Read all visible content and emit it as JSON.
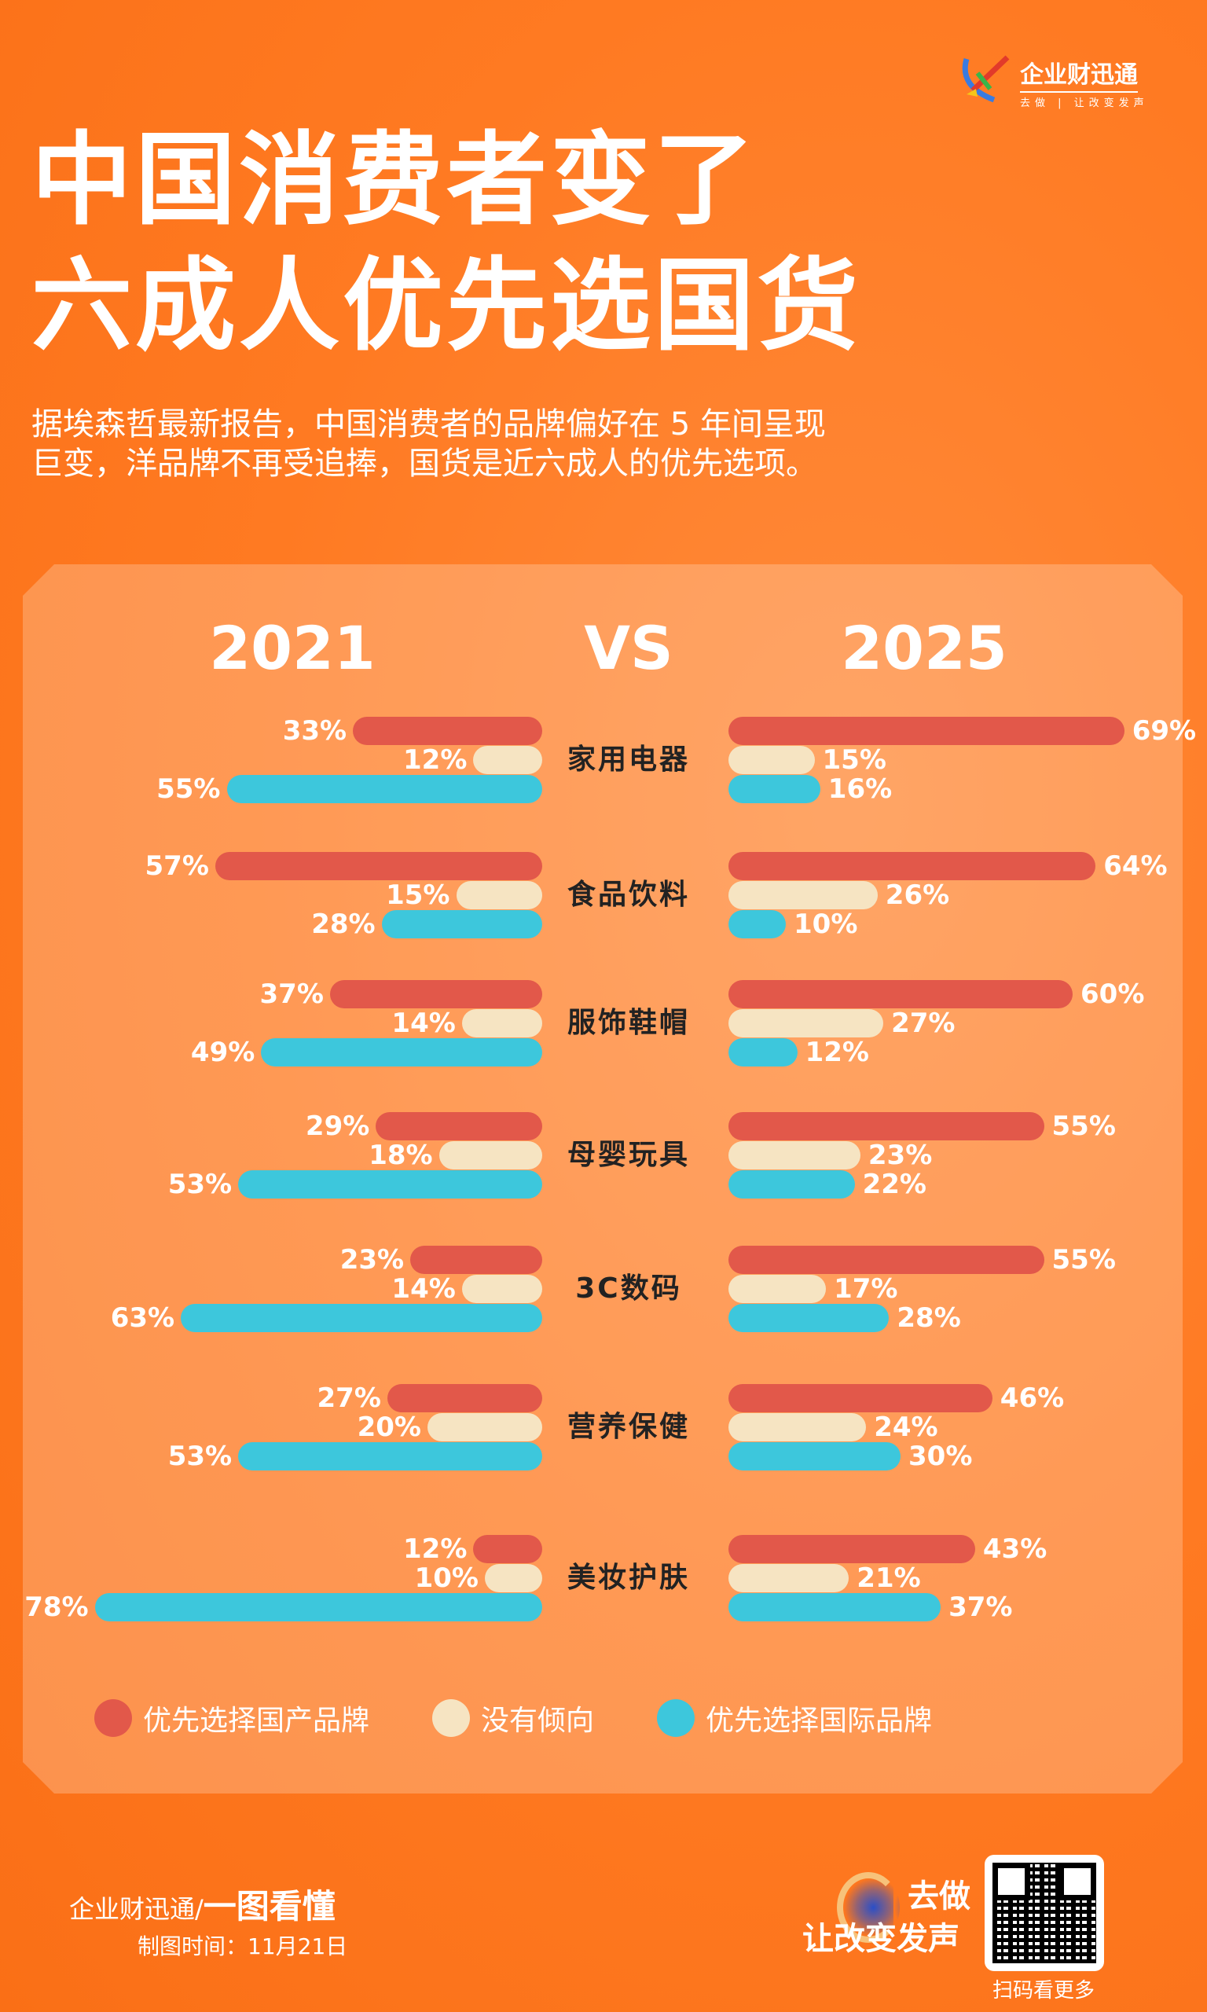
{
  "brand": {
    "name": "企业财迅通",
    "slogan": "去做 | 让改变发声"
  },
  "title": [
    "中国消费者变了",
    "六成人优先选国货"
  ],
  "subtitle": "据埃森哲最新报告，中国消费者的品牌偏好在 5 年间呈现巨变，洋品牌不再受追捧，国货是近六成人的优先选项。",
  "colors": {
    "domestic": "#e2584a",
    "neutral": "#f6e4c2",
    "international": "#3dc7dc",
    "background": "#ff7a22"
  },
  "chart_data": {
    "type": "bar",
    "title": "2021 VS 2025",
    "left_header": "2021",
    "vs": "VS",
    "right_header": "2025",
    "categories": [
      "家用电器",
      "食品饮料",
      "服饰鞋帽",
      "母婴玩具",
      "3C数码",
      "营养保健",
      "美妆护肤"
    ],
    "series": [
      {
        "name": "优先选择国产品牌",
        "y2021": [
          33,
          57,
          37,
          29,
          23,
          27,
          12
        ],
        "y2025": [
          69,
          64,
          60,
          55,
          55,
          46,
          43
        ]
      },
      {
        "name": "没有倾向",
        "y2021": [
          12,
          15,
          14,
          18,
          14,
          20,
          10
        ],
        "y2025": [
          15,
          26,
          27,
          23,
          17,
          24,
          21
        ]
      },
      {
        "name": "优先选择国际品牌",
        "y2021": [
          55,
          28,
          49,
          53,
          63,
          53,
          78
        ],
        "y2025": [
          16,
          10,
          12,
          22,
          28,
          30,
          37
        ]
      }
    ],
    "legend_placement": "bottom",
    "unit": "%"
  },
  "footer": {
    "brand": "企业财迅通/",
    "tagline": "一图看懂",
    "date": "制图时间：11月21日",
    "cta_line1": "去做",
    "cta_line2": "让改变发声",
    "qr_label": "扫码看更多"
  }
}
